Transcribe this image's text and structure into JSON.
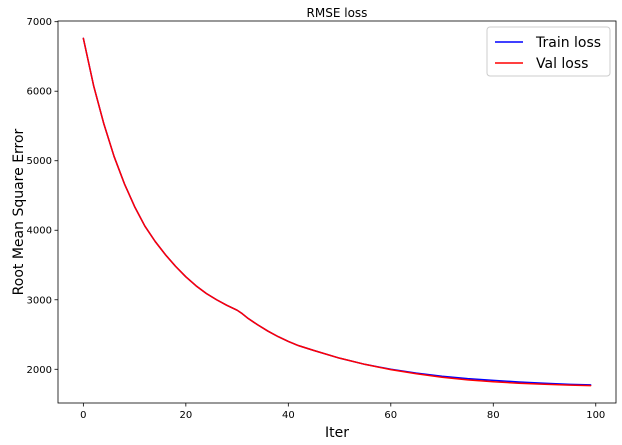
{
  "chart_data": {
    "type": "line",
    "title": "RMSE loss",
    "xlabel": "Iter",
    "ylabel": "Root Mean Square Error",
    "xlim": [
      -4.95,
      103.95
    ],
    "ylim": [
      1515,
      7010
    ],
    "xticks": [
      0,
      20,
      40,
      60,
      80,
      100
    ],
    "yticks": [
      2000,
      3000,
      4000,
      5000,
      6000,
      7000
    ],
    "grid": false,
    "legend_position": "top-right",
    "series": [
      {
        "name": "Train loss",
        "color": "#0000ff",
        "x": [
          0,
          2,
          4,
          6,
          8,
          10,
          12,
          14,
          16,
          18,
          20,
          22,
          24,
          26,
          28,
          30,
          31,
          32,
          34,
          36,
          38,
          40,
          42,
          45,
          50,
          55,
          60,
          65,
          70,
          75,
          80,
          85,
          90,
          95,
          99
        ],
        "y": [
          6760,
          6080,
          5530,
          5060,
          4670,
          4340,
          4060,
          3840,
          3650,
          3480,
          3330,
          3200,
          3090,
          3000,
          2920,
          2850,
          2800,
          2740,
          2640,
          2550,
          2470,
          2400,
          2340,
          2270,
          2160,
          2070,
          2000,
          1945,
          1900,
          1865,
          1840,
          1818,
          1800,
          1783,
          1775
        ]
      },
      {
        "name": "Val loss",
        "color": "#ff0000",
        "x": [
          0,
          2,
          4,
          6,
          8,
          10,
          12,
          14,
          16,
          18,
          20,
          22,
          24,
          26,
          28,
          30,
          31,
          32,
          34,
          36,
          38,
          40,
          42,
          45,
          50,
          55,
          60,
          65,
          70,
          75,
          80,
          85,
          90,
          95,
          99
        ],
        "y": [
          6760,
          6080,
          5530,
          5060,
          4670,
          4340,
          4060,
          3840,
          3650,
          3480,
          3330,
          3200,
          3090,
          3000,
          2920,
          2850,
          2800,
          2740,
          2640,
          2550,
          2470,
          2400,
          2340,
          2270,
          2160,
          2070,
          1995,
          1935,
          1885,
          1848,
          1820,
          1800,
          1785,
          1772,
          1765
        ]
      }
    ]
  }
}
